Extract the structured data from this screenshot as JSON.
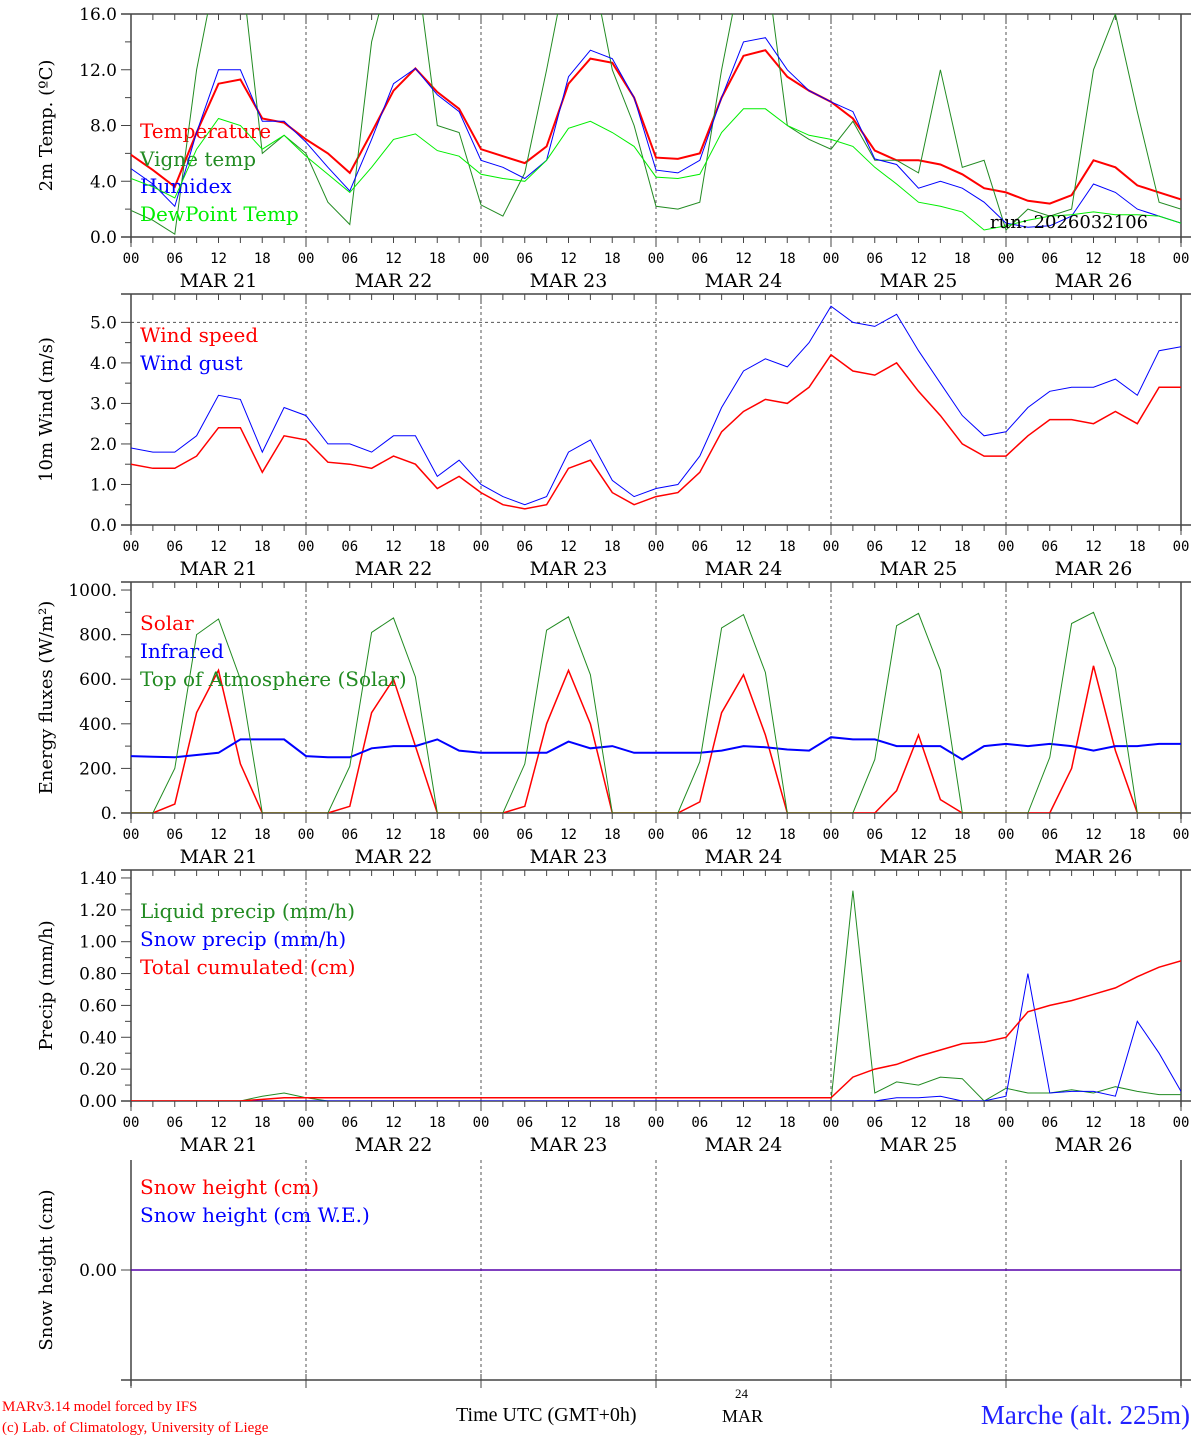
{
  "x_axis": {
    "hour_labels": [
      "00",
      "06",
      "12",
      "18"
    ],
    "day_labels": [
      "MAR 21",
      "MAR 22",
      "MAR 23",
      "MAR 24",
      "MAR 25",
      "MAR 26"
    ],
    "final_hour_label": "00",
    "title": "Time UTC (GMT+0h)",
    "center_day": "24",
    "center_month": "MAR",
    "start_hour": 0,
    "step_hours": 3,
    "end_hour": 144
  },
  "footer": {
    "credit_line1": "MARv3.14 model forced by IFS",
    "credit_line2": "(c) Lab. of Climatology, University of Liege",
    "station": "Marche (alt. 225m)"
  },
  "chart_data": [
    {
      "type": "line",
      "ylabel": "2m Temp. (ºC)",
      "ylim": [
        0,
        16
      ],
      "yticks": [
        "0.0",
        "4.0",
        "8.0",
        "12.0",
        "16.0"
      ],
      "ytick_values": [
        0,
        4,
        8,
        12,
        16
      ],
      "annotation": "run: 2026032106",
      "series": [
        {
          "name": "Temperature",
          "color": "#ff0000",
          "width": 2,
          "values": [
            5.9,
            4.8,
            3.6,
            7.5,
            11,
            11.3,
            8.5,
            8.2,
            7.0,
            6.0,
            4.6,
            7.5,
            10.5,
            12.1,
            10.4,
            9.2,
            6.3,
            5.8,
            5.3,
            6.5,
            11,
            12.8,
            12.5,
            10,
            5.7,
            5.6,
            6,
            10,
            13,
            13.4,
            11.5,
            10.5,
            9.7,
            8.5,
            6.2,
            5.5,
            5.5,
            5.2,
            4.5,
            3.5,
            3.2,
            2.6,
            2.4,
            3.0,
            5.5,
            5.0,
            3.7,
            3.2,
            2.7
          ]
        },
        {
          "name": "Vigne temp",
          "color": "#228b22",
          "width": 1,
          "values": [
            1.9,
            1.2,
            0.2,
            12,
            20,
            20,
            6,
            7.3,
            6.0,
            2.5,
            0.9,
            14,
            20,
            20,
            8,
            7.5,
            2.3,
            1.5,
            4.6,
            12,
            20,
            20,
            12,
            8,
            2.2,
            2.0,
            2.5,
            12,
            20,
            20,
            8,
            7,
            6.3,
            8.3,
            5.5,
            5.5,
            4.6,
            12,
            5,
            5.5,
            0.5,
            2,
            1.5,
            2,
            12,
            16,
            9,
            2.5,
            2.0
          ]
        },
        {
          "name": "Humidex",
          "color": "#0000ff",
          "width": 1,
          "values": [
            4.9,
            3.8,
            2.2,
            7.5,
            12,
            12,
            8.3,
            8.3,
            6.8,
            5,
            3.3,
            7,
            11,
            12.1,
            10.2,
            9,
            5.5,
            5,
            4.2,
            5.5,
            11.5,
            13.4,
            12.8,
            10,
            4.8,
            4.6,
            5.5,
            10,
            14,
            14.3,
            12,
            10.5,
            9.7,
            9,
            5.6,
            5.2,
            3.5,
            4.0,
            3.5,
            2.5,
            1.0,
            0.7,
            0.8,
            1.5,
            3.8,
            3.2,
            2.0,
            1.5,
            1.0
          ]
        },
        {
          "name": "DewPoint Temp",
          "color": "#00ee00",
          "width": 1,
          "values": [
            4.2,
            3.6,
            2.8,
            6.3,
            8.5,
            8,
            6.3,
            7.3,
            5.8,
            4.5,
            3.2,
            5,
            7,
            7.4,
            6.2,
            5.8,
            4.5,
            4.2,
            4,
            5.5,
            7.8,
            8.3,
            7.5,
            6.5,
            4.3,
            4.2,
            4.5,
            7.5,
            9.2,
            9.2,
            8,
            7.3,
            7.0,
            6.5,
            5,
            3.8,
            2.5,
            2.2,
            1.8,
            0.5,
            0.8,
            1.2,
            1.5,
            1.6,
            1.8,
            1.6,
            1.6,
            1.5,
            1.0
          ]
        }
      ]
    },
    {
      "type": "line",
      "ylabel": "10m Wind (m/s)",
      "ylim": [
        0,
        5.7
      ],
      "yticks": [
        "0.0",
        "1.0",
        "2.0",
        "3.0",
        "4.0",
        "5.0"
      ],
      "ytick_values": [
        0,
        1,
        2,
        3,
        4,
        5
      ],
      "reference_line": 5,
      "series": [
        {
          "name": "Wind speed",
          "color": "#ff0000",
          "width": 1.5,
          "values": [
            1.5,
            1.4,
            1.4,
            1.7,
            2.4,
            2.4,
            1.3,
            2.2,
            2.1,
            1.55,
            1.5,
            1.4,
            1.7,
            1.5,
            0.9,
            1.2,
            0.8,
            0.5,
            0.4,
            0.5,
            1.4,
            1.6,
            0.8,
            0.5,
            0.7,
            0.8,
            1.3,
            2.3,
            2.8,
            3.1,
            3.0,
            3.4,
            4.2,
            3.8,
            3.7,
            4.0,
            3.3,
            2.7,
            2.0,
            1.7,
            1.7,
            2.2,
            2.6,
            2.6,
            2.5,
            2.8,
            2.5,
            3.4,
            3.4
          ]
        },
        {
          "name": "Wind gust",
          "color": "#0000ff",
          "width": 1,
          "values": [
            1.9,
            1.8,
            1.8,
            2.2,
            3.2,
            3.1,
            1.8,
            2.9,
            2.7,
            2.0,
            2.0,
            1.8,
            2.2,
            2.2,
            1.2,
            1.6,
            1.0,
            0.7,
            0.5,
            0.7,
            1.8,
            2.1,
            1.1,
            0.7,
            0.9,
            1.0,
            1.7,
            2.9,
            3.8,
            4.1,
            3.9,
            4.5,
            5.4,
            5.0,
            4.9,
            5.2,
            4.3,
            3.5,
            2.7,
            2.2,
            2.3,
            2.9,
            3.3,
            3.4,
            3.4,
            3.6,
            3.2,
            4.3,
            4.4
          ]
        }
      ]
    },
    {
      "type": "line",
      "ylabel": "Energy fluxes (W/m²)",
      "ylim": [
        0,
        1036
      ],
      "yticks": [
        "0.",
        "200.",
        "400.",
        "600.",
        "800.",
        "1000."
      ],
      "ytick_values": [
        0,
        200,
        400,
        600,
        800,
        1000
      ],
      "series": [
        {
          "name": "Solar",
          "color": "#ff0000",
          "width": 1.5,
          "values": [
            0,
            0,
            40,
            450,
            640,
            220,
            0,
            0,
            0,
            0,
            30,
            450,
            600,
            300,
            0,
            0,
            0,
            0,
            30,
            400,
            640,
            400,
            0,
            0,
            0,
            0,
            50,
            450,
            620,
            350,
            0,
            0,
            0,
            0,
            0,
            100,
            350,
            60,
            0,
            0,
            0,
            0,
            0,
            200,
            660,
            280,
            0,
            0,
            0
          ]
        },
        {
          "name": "Infrared",
          "color": "#0000ff",
          "width": 2,
          "values": [
            255,
            252,
            250,
            260,
            270,
            330,
            330,
            330,
            255,
            250,
            250,
            290,
            300,
            300,
            330,
            280,
            270,
            270,
            270,
            270,
            320,
            290,
            300,
            270,
            270,
            270,
            270,
            280,
            300,
            295,
            285,
            280,
            340,
            330,
            330,
            300,
            300,
            300,
            240,
            300,
            310,
            300,
            310,
            300,
            280,
            300,
            300,
            310,
            310
          ]
        },
        {
          "name": "Top of Atmosphere (Solar)",
          "color": "#228b22",
          "width": 1,
          "values": [
            0,
            0,
            200,
            800,
            870,
            600,
            0,
            0,
            0,
            0,
            210,
            810,
            875,
            610,
            0,
            0,
            0,
            0,
            220,
            820,
            880,
            620,
            0,
            0,
            0,
            0,
            230,
            830,
            890,
            630,
            0,
            0,
            0,
            0,
            240,
            840,
            895,
            640,
            0,
            0,
            0,
            0,
            250,
            850,
            900,
            650,
            0,
            0,
            0
          ]
        }
      ]
    },
    {
      "type": "line",
      "ylabel": "Precip (mm/h)",
      "ylim": [
        0,
        1.45
      ],
      "yticks": [
        "0.00",
        "0.20",
        "0.40",
        "0.60",
        "0.80",
        "1.00",
        "1.20",
        "1.40"
      ],
      "ytick_values": [
        0,
        0.2,
        0.4,
        0.6,
        0.8,
        1.0,
        1.2,
        1.4
      ],
      "series": [
        {
          "name": "Liquid precip (mm/h)",
          "color": "#228b22",
          "width": 1,
          "values": [
            0,
            0,
            0,
            0,
            0,
            0,
            0.03,
            0.05,
            0.02,
            0,
            0,
            0,
            0,
            0,
            0,
            0,
            0,
            0,
            0,
            0,
            0,
            0,
            0,
            0,
            0,
            0,
            0,
            0,
            0,
            0,
            0,
            0,
            0,
            1.32,
            0.05,
            0.12,
            0.1,
            0.15,
            0.14,
            0,
            0.08,
            0.05,
            0.05,
            0.07,
            0.05,
            0.09,
            0.06,
            0.04,
            0.04
          ]
        },
        {
          "name": "Snow precip (mm/h)",
          "color": "#0000ff",
          "width": 1,
          "values": [
            0,
            0,
            0,
            0,
            0,
            0,
            0,
            0,
            0,
            0,
            0,
            0,
            0,
            0,
            0,
            0,
            0,
            0,
            0,
            0,
            0,
            0,
            0,
            0,
            0,
            0,
            0,
            0,
            0,
            0,
            0,
            0,
            0,
            0,
            0,
            0.02,
            0.02,
            0.03,
            0,
            0,
            0.03,
            0.8,
            0.05,
            0.06,
            0.06,
            0.03,
            0.5,
            0.3,
            0.06
          ]
        },
        {
          "name": "Total cumulated (cm)",
          "color": "#ff0000",
          "width": 1.5,
          "values": [
            0,
            0,
            0,
            0,
            0,
            0,
            0.01,
            0.02,
            0.02,
            0.02,
            0.02,
            0.02,
            0.02,
            0.02,
            0.02,
            0.02,
            0.02,
            0.02,
            0.02,
            0.02,
            0.02,
            0.02,
            0.02,
            0.02,
            0.02,
            0.02,
            0.02,
            0.02,
            0.02,
            0.02,
            0.02,
            0.02,
            0.02,
            0.15,
            0.2,
            0.23,
            0.28,
            0.32,
            0.36,
            0.37,
            0.4,
            0.56,
            0.6,
            0.63,
            0.67,
            0.71,
            0.78,
            0.84,
            0.88
          ]
        }
      ]
    },
    {
      "type": "line",
      "ylabel": "Snow height (cm)",
      "ylim": [
        -1,
        1
      ],
      "yticks": [
        "0.00"
      ],
      "ytick_values": [
        0
      ],
      "series": [
        {
          "name": "Snow height (cm)",
          "color": "#ff0000",
          "width": 1.5,
          "values": [
            0,
            0,
            0,
            0,
            0,
            0,
            0,
            0,
            0,
            0,
            0,
            0,
            0,
            0,
            0,
            0,
            0,
            0,
            0,
            0,
            0,
            0,
            0,
            0,
            0,
            0,
            0,
            0,
            0,
            0,
            0,
            0,
            0,
            0,
            0,
            0,
            0,
            0,
            0,
            0,
            0,
            0,
            0,
            0,
            0,
            0,
            0,
            0,
            0
          ]
        },
        {
          "name": "Snow height (cm W.E.)",
          "color": "#0000ff",
          "width": 1,
          "values": [
            0,
            0,
            0,
            0,
            0,
            0,
            0,
            0,
            0,
            0,
            0,
            0,
            0,
            0,
            0,
            0,
            0,
            0,
            0,
            0,
            0,
            0,
            0,
            0,
            0,
            0,
            0,
            0,
            0,
            0,
            0,
            0,
            0,
            0,
            0,
            0,
            0,
            0,
            0,
            0,
            0,
            0,
            0,
            0,
            0,
            0,
            0,
            0,
            0
          ]
        }
      ]
    }
  ]
}
